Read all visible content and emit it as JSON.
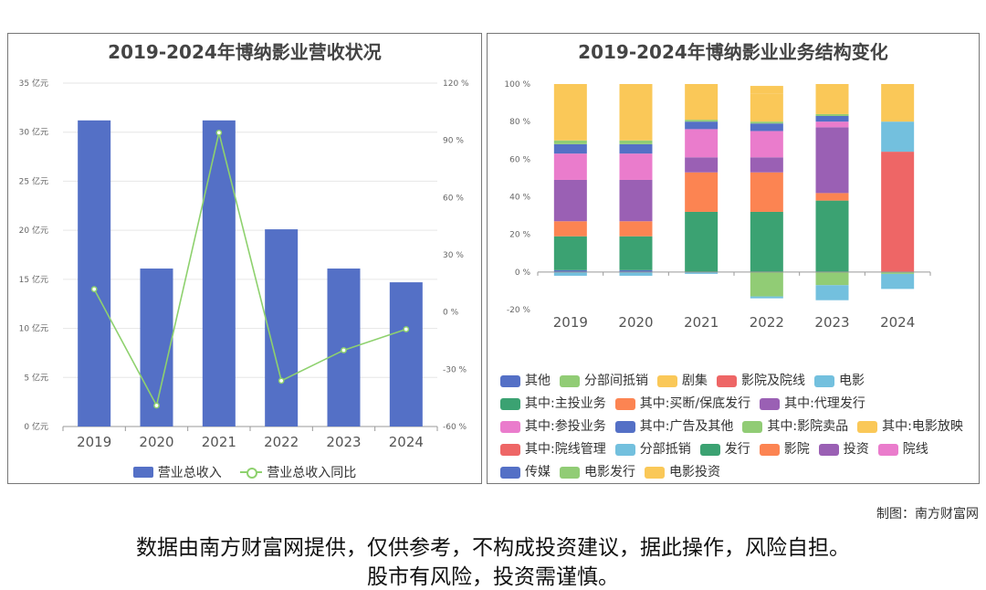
{
  "credit": "制图：南方财富网",
  "disclaimer": {
    "line1": "数据由南方财富网提供，仅供参考，不构成投资建议，据此操作，风险自担。",
    "line2": "股市有风险，投资需谨慎。"
  },
  "chart_data": [
    {
      "type": "bar",
      "title": "2019-2024年博纳影业营收状况",
      "categories": [
        "2019",
        "2020",
        "2021",
        "2022",
        "2023",
        "2024"
      ],
      "series": [
        {
          "name": "营业总收入",
          "kind": "bar",
          "axis": "left",
          "color": "#5470c6",
          "values": [
            31.2,
            16.1,
            31.2,
            20.1,
            16.1,
            14.7
          ]
        },
        {
          "name": "营业总收入同比",
          "kind": "line",
          "axis": "right",
          "color": "#8ed16e",
          "values": [
            12,
            -49,
            94,
            -36,
            -20,
            -9
          ]
        }
      ],
      "yleft": {
        "min": 0,
        "max": 35,
        "step": 5,
        "unit": "亿元",
        "ticks": [
          "0 亿元",
          "5 亿元",
          "10 亿元",
          "15 亿元",
          "20 亿元",
          "25 亿元",
          "30 亿元",
          "35 亿元"
        ]
      },
      "yright": {
        "min": -60,
        "max": 120,
        "step": 30,
        "unit": "%",
        "ticks": [
          "-60 %",
          "-30 %",
          "0 %",
          "30 %",
          "60 %",
          "90 %",
          "120 %"
        ]
      },
      "legend": "bottom-center",
      "grid": true
    },
    {
      "type": "bar",
      "stacked": true,
      "title": "2019-2024年博纳影业业务结构变化",
      "categories": [
        "2019",
        "2020",
        "2021",
        "2022",
        "2023",
        "2024"
      ],
      "yaxis": {
        "min": -20,
        "max": 100,
        "step": 20,
        "ticks": [
          "-20 %",
          "0 %",
          "20 %",
          "40 %",
          "60 %",
          "80 %",
          "100 %"
        ]
      },
      "series": [
        {
          "name": "其他",
          "color": "#5470c6",
          "values": [
            1,
            1,
            0,
            0,
            0,
            0
          ]
        },
        {
          "name": "分部间抵销",
          "color": "#91cc75",
          "values": [
            0,
            0,
            0,
            -13,
            -7,
            -1
          ]
        },
        {
          "name": "剧集",
          "color": "#fac858",
          "values": [
            0,
            0,
            0,
            0,
            0,
            0
          ]
        },
        {
          "name": "影院及院线",
          "color": "#ee6666",
          "values": [
            0,
            0,
            0,
            0,
            0,
            64
          ]
        },
        {
          "name": "电影",
          "color": "#73c0de",
          "values": [
            0,
            0,
            0,
            0,
            0,
            16
          ]
        },
        {
          "name": "其中:主投业务",
          "color": "#3ba272",
          "values": [
            18,
            18,
            32,
            32,
            38,
            0
          ]
        },
        {
          "name": "其中:买断/保底发行",
          "color": "#fc8452",
          "values": [
            8,
            8,
            21,
            21,
            4,
            0
          ]
        },
        {
          "name": "其中:代理发行",
          "color": "#9a60b4",
          "values": [
            22,
            22,
            8,
            8,
            35,
            0
          ]
        },
        {
          "name": "其中:参投业务",
          "color": "#ea7ccc",
          "values": [
            14,
            14,
            15,
            14,
            3,
            0
          ]
        },
        {
          "name": "其中:广告及其他",
          "color": "#5470c6",
          "values": [
            5,
            5,
            4,
            4,
            3,
            0
          ]
        },
        {
          "name": "其中:影院卖品",
          "color": "#91cc75",
          "values": [
            2,
            2,
            1,
            1,
            1,
            0
          ]
        },
        {
          "name": "其中:电影放映",
          "color": "#fac858",
          "values": [
            30,
            30,
            19,
            15,
            16,
            0
          ]
        },
        {
          "name": "其中:院线管理",
          "color": "#ee6666",
          "values": [
            0,
            0,
            0,
            0,
            0,
            0
          ]
        },
        {
          "name": "分部抵销",
          "color": "#73c0de",
          "values": [
            -2,
            -2,
            -1,
            -1,
            -8,
            -8
          ]
        },
        {
          "name": "发行",
          "color": "#3ba272",
          "values": [
            0,
            0,
            0,
            0,
            0,
            0
          ]
        },
        {
          "name": "影院",
          "color": "#fc8452",
          "values": [
            0,
            0,
            0,
            0,
            0,
            0
          ]
        },
        {
          "name": "投资",
          "color": "#9a60b4",
          "values": [
            0,
            0,
            0,
            0,
            0,
            0
          ]
        },
        {
          "name": "院线",
          "color": "#ea7ccc",
          "values": [
            0,
            0,
            0,
            0,
            0,
            0
          ]
        },
        {
          "name": "传媒",
          "color": "#5470c6",
          "values": [
            0,
            0,
            0,
            0,
            0,
            0
          ]
        },
        {
          "name": "电影发行",
          "color": "#91cc75",
          "values": [
            0,
            0,
            0,
            0,
            0,
            0
          ]
        },
        {
          "name": "电影投资",
          "color": "#fac858",
          "values": [
            0,
            0,
            0,
            4,
            0,
            20
          ]
        }
      ],
      "legend": "bottom",
      "grid": false
    }
  ]
}
